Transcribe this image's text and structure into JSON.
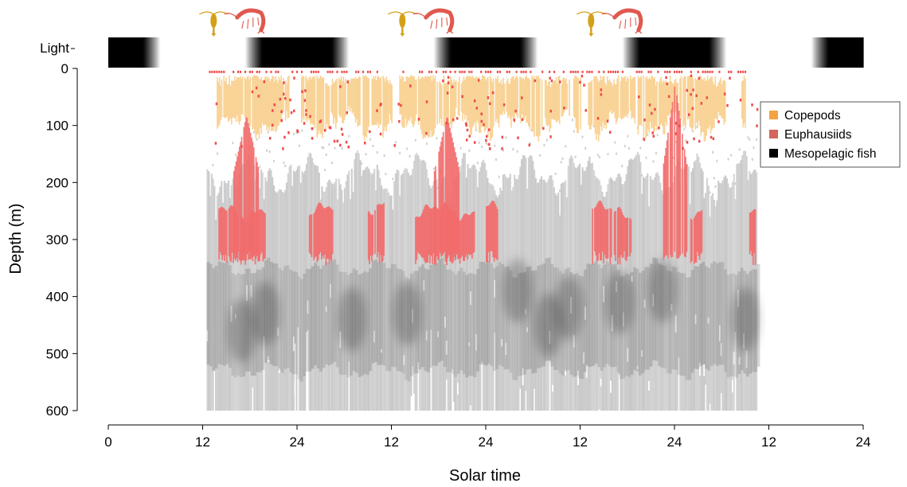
{
  "chart_data": {
    "type": "heatmap",
    "title": "",
    "xlabel": "Solar time",
    "ylabel": "Depth (m)",
    "x_tick_labels": [
      "0",
      "12",
      "24",
      "12",
      "24",
      "12",
      "24",
      "12",
      "24"
    ],
    "x_ticks_hours": [
      0,
      12,
      24,
      36,
      48,
      60,
      72,
      84,
      96
    ],
    "xlim_hours": [
      0,
      96
    ],
    "y_ticks": [
      0,
      100,
      200,
      300,
      400,
      500,
      600
    ],
    "ylim": [
      600,
      0
    ],
    "light_label": "Light",
    "light_bar": {
      "description_values": "0 = light, 1 = dark",
      "day_centers_hours": [
        12,
        36,
        60,
        84
      ],
      "night_centers_hours": [
        0,
        24,
        48,
        72,
        96
      ]
    },
    "data_extent_hours": [
      12.5,
      82.5
    ],
    "legend": {
      "position": "right",
      "entries": [
        {
          "label": "Copepods",
          "color": "#f4a340"
        },
        {
          "label": "Euphausiids",
          "color": "#d4645e"
        },
        {
          "label": "Mesopelagic fish",
          "color": "#000000"
        }
      ]
    },
    "series": [
      {
        "name": "Copepods",
        "color": "#f8cf8e",
        "typical_depth_range_m": [
          10,
          130
        ],
        "segments_hours": [
          [
            13.5,
            23
          ],
          [
            24.5,
            36
          ],
          [
            37,
            60
          ],
          [
            61,
            78.5
          ],
          [
            80.5,
            81
          ]
        ]
      },
      {
        "name": "Euphausiids",
        "color": "#f26b6b",
        "night_peaks_hours": [
          17.5,
          43,
          72
        ],
        "day_depth_range_m": [
          240,
          345
        ],
        "night_depth_range_m": [
          20,
          130
        ]
      },
      {
        "name": "Mesopelagic fish",
        "color": "#c8c8c8",
        "depth_range_m": [
          140,
          600
        ],
        "dense_core_m": [
          350,
          530
        ],
        "hot_spots": [
          {
            "t": 17,
            "d": 460
          },
          {
            "t": 20,
            "d": 430
          },
          {
            "t": 31,
            "d": 440
          },
          {
            "t": 38,
            "d": 430
          },
          {
            "t": 52,
            "d": 390
          },
          {
            "t": 56,
            "d": 450
          },
          {
            "t": 58.5,
            "d": 420
          },
          {
            "t": 65,
            "d": 410
          },
          {
            "t": 70.5,
            "d": 390
          },
          {
            "t": 81,
            "d": 440
          }
        ]
      }
    ],
    "icons": [
      {
        "name": "copepod-icon",
        "color": "#d4a017",
        "at_hours": 13.4
      },
      {
        "name": "krill-icon",
        "color": "#e0594f",
        "at_hours": 17.8
      },
      {
        "name": "copepod-icon",
        "color": "#d4a017",
        "at_hours": 37.4
      },
      {
        "name": "krill-icon",
        "color": "#e0594f",
        "at_hours": 41.8
      },
      {
        "name": "copepod-icon",
        "color": "#d4a017",
        "at_hours": 61.4
      },
      {
        "name": "krill-icon",
        "color": "#e0594f",
        "at_hours": 65.8
      }
    ]
  }
}
